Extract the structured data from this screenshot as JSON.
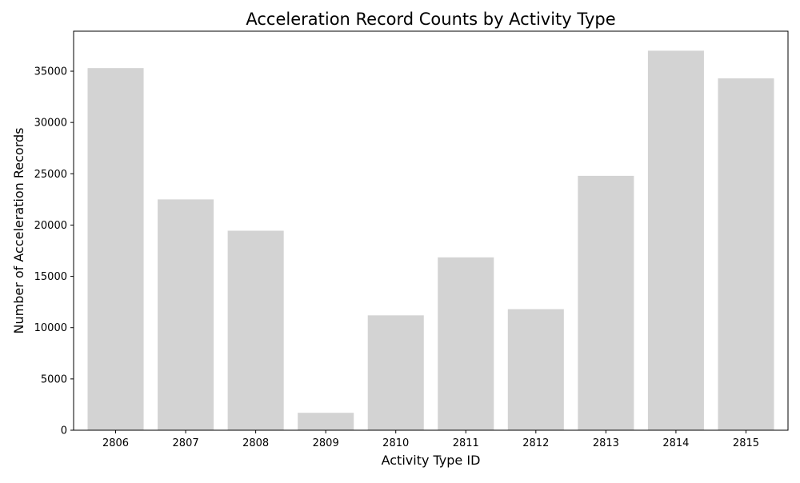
{
  "chart_data": {
    "type": "bar",
    "title": "Acceleration Record Counts by Activity Type",
    "xlabel": "Activity Type ID",
    "ylabel": "Number of Acceleration Records",
    "categories": [
      "2806",
      "2807",
      "2808",
      "2809",
      "2810",
      "2811",
      "2812",
      "2813",
      "2814",
      "2815"
    ],
    "values": [
      35300,
      22500,
      19450,
      1700,
      11200,
      16850,
      11800,
      24800,
      37000,
      34300
    ],
    "ylim": [
      0,
      38900
    ],
    "yticks": [
      0,
      5000,
      10000,
      15000,
      20000,
      25000,
      30000,
      35000
    ],
    "bar_color": "#d3d3d3",
    "grid": false,
    "legend": "none"
  }
}
